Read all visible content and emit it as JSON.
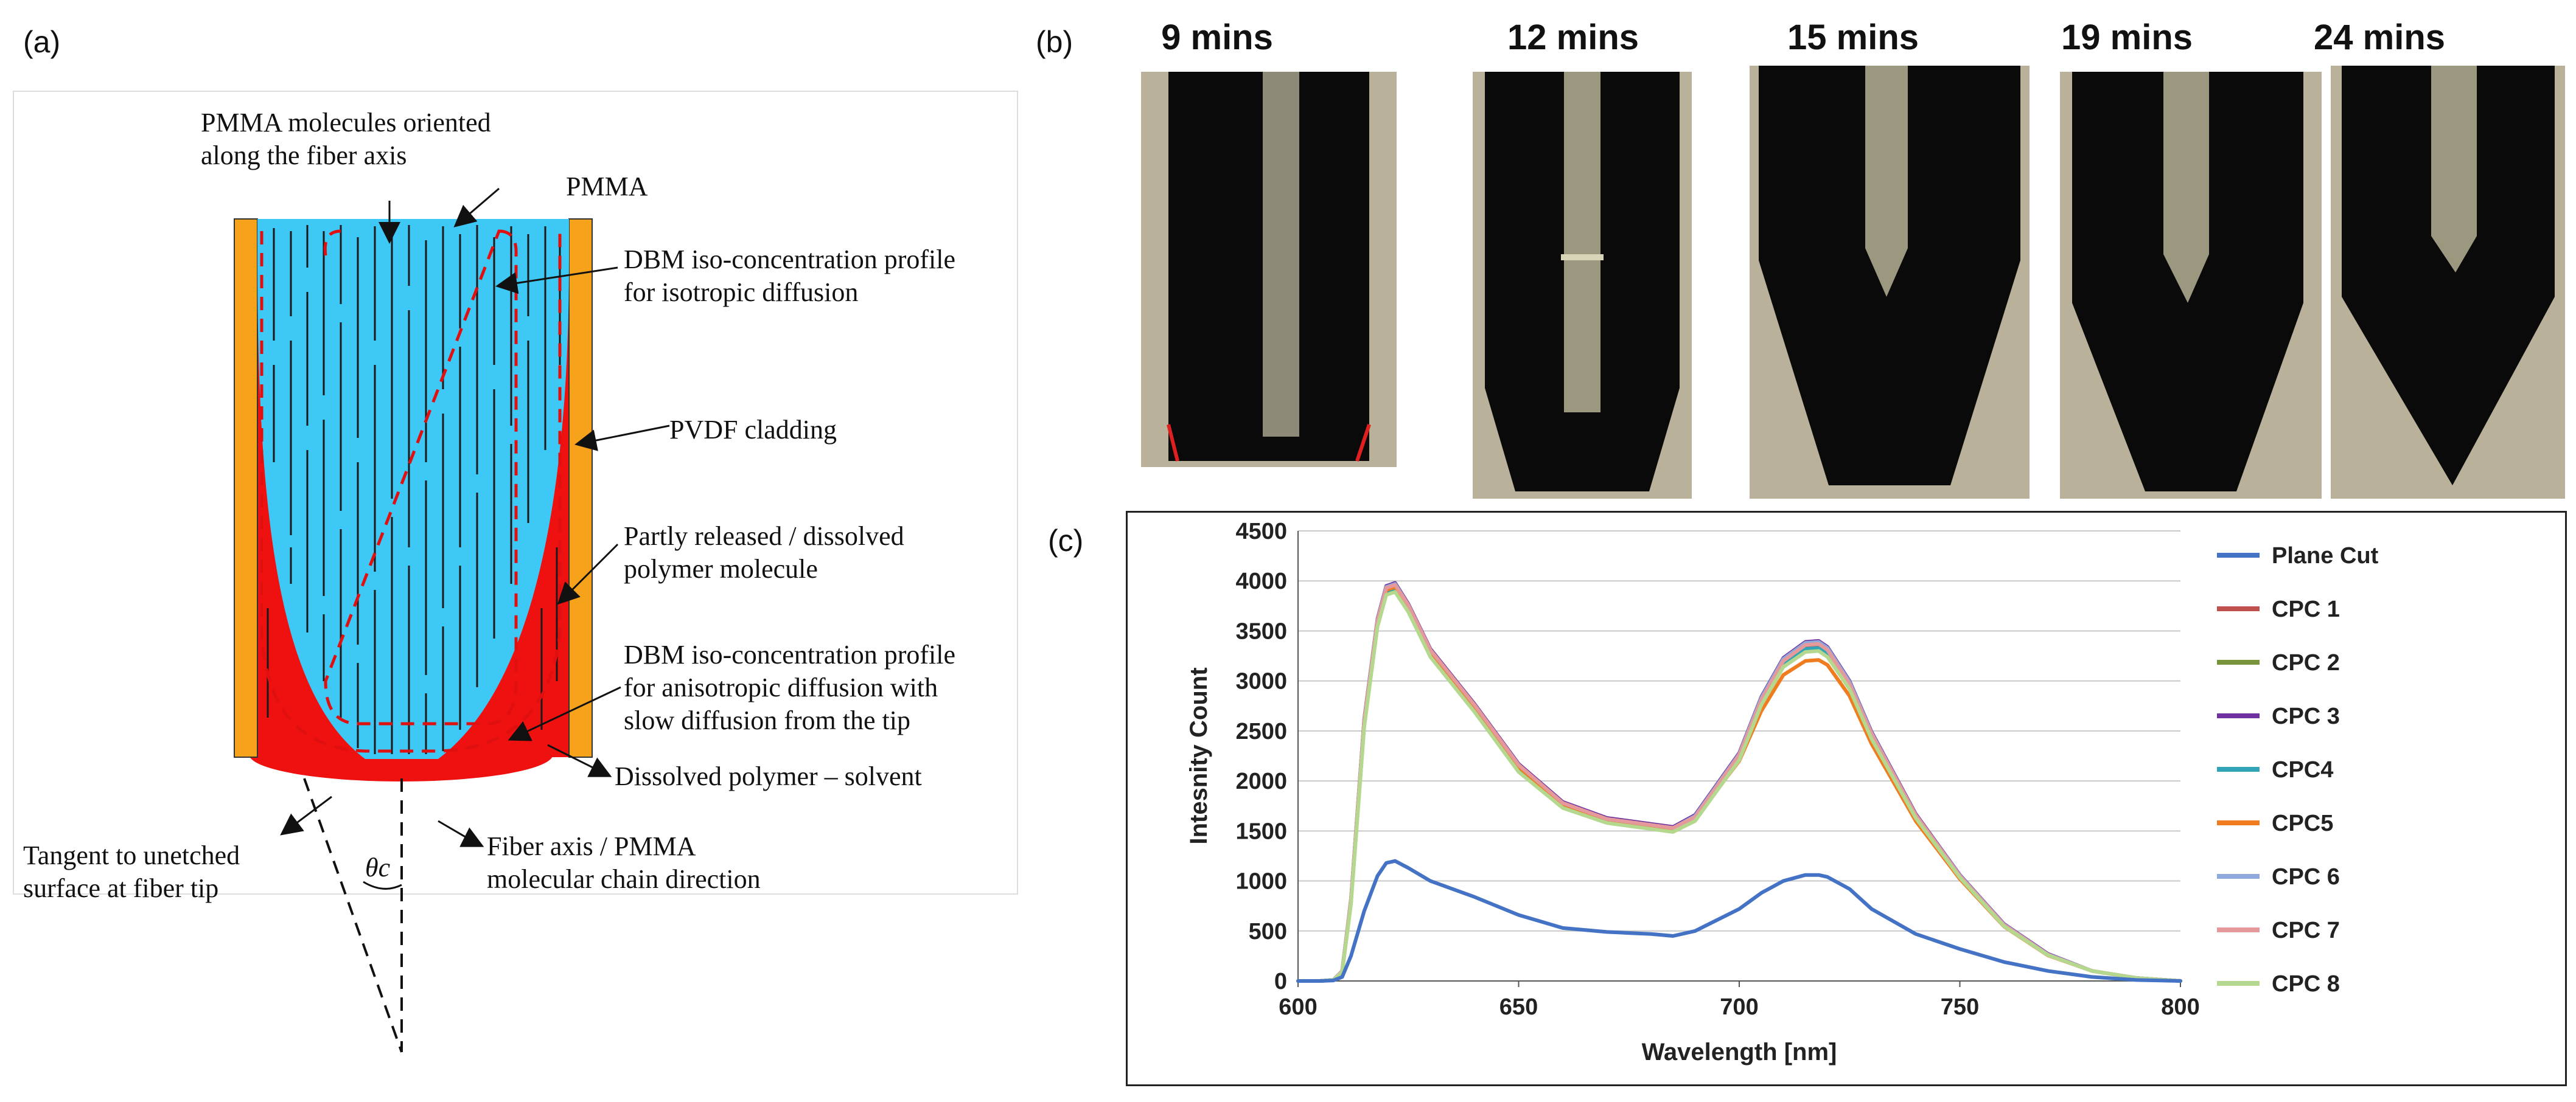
{
  "labels": {
    "a": "(a)",
    "b": "(b)",
    "c": "(c)"
  },
  "diagram": {
    "annotations": {
      "oriented1": "PMMA molecules oriented",
      "oriented2": "along the fiber axis",
      "pmma": "PMMA",
      "dbm_iso1": "DBM iso-concentration profile",
      "dbm_iso2": "for isotropic diffusion",
      "pvdf": "PVDF cladding",
      "partly1": "Partly released / dissolved",
      "partly2": "polymer molecule",
      "dbm_aniso1": "DBM iso-concentration profile",
      "dbm_aniso2": "for anisotropic diffusion with",
      "dbm_aniso3": "slow diffusion from the tip",
      "dissolved": "Dissolved polymer – solvent",
      "tangent1": "Tangent to unetched",
      "tangent2": "surface at fiber tip",
      "axis1": "Fiber axis / PMMA",
      "axis2": "molecular chain direction",
      "theta": "θc"
    },
    "colors": {
      "core": "#3ec8f5",
      "cladding": "#f7a21b",
      "solvent": "#ef1010",
      "profile": "#e01010"
    }
  },
  "photos": [
    {
      "title": "9 mins"
    },
    {
      "title": "12 mins"
    },
    {
      "title": "15 mins"
    },
    {
      "title": "19 mins"
    },
    {
      "title": "24 mins"
    }
  ],
  "chart_data": {
    "type": "line",
    "xlabel": "Wavelength [nm]",
    "ylabel": "Intesnity Count",
    "xlim": [
      600,
      800
    ],
    "ylim": [
      0,
      4500
    ],
    "xticks": [
      600,
      650,
      700,
      750,
      800
    ],
    "yticks": [
      0,
      500,
      1000,
      1500,
      2000,
      2500,
      3000,
      3500,
      4000,
      4500
    ],
    "grid": "horizontal",
    "legend_position": "right",
    "x": [
      600,
      605,
      608,
      610,
      612,
      615,
      618,
      620,
      622,
      625,
      630,
      640,
      650,
      660,
      670,
      675,
      680,
      685,
      690,
      700,
      705,
      710,
      715,
      718,
      720,
      725,
      730,
      740,
      750,
      760,
      770,
      780,
      790,
      800
    ],
    "series": [
      {
        "name": "Plane Cut",
        "color": "#4472c4",
        "values": [
          0,
          0,
          5,
          40,
          250,
          700,
          1050,
          1180,
          1200,
          1130,
          1000,
          840,
          660,
          530,
          490,
          480,
          470,
          450,
          500,
          720,
          880,
          1000,
          1060,
          1060,
          1040,
          920,
          720,
          470,
          320,
          190,
          100,
          40,
          10,
          0
        ]
      },
      {
        "name": "CPC 1",
        "color": "#c0504d",
        "values": [
          0,
          0,
          10,
          100,
          800,
          2600,
          3600,
          3920,
          3950,
          3750,
          3300,
          2750,
          2150,
          1780,
          1620,
          1590,
          1560,
          1530,
          1640,
          2250,
          2800,
          3180,
          3330,
          3340,
          3280,
          2950,
          2450,
          1650,
          1050,
          560,
          260,
          100,
          30,
          0
        ]
      },
      {
        "name": "CPC 2",
        "color": "#77933c",
        "values": [
          0,
          0,
          10,
          90,
          780,
          2550,
          3550,
          3870,
          3900,
          3700,
          3250,
          2700,
          2100,
          1740,
          1590,
          1560,
          1530,
          1500,
          1610,
          2220,
          2770,
          3150,
          3300,
          3310,
          3250,
          2930,
          2430,
          1640,
          1040,
          550,
          260,
          100,
          30,
          0
        ]
      },
      {
        "name": "CPC 3",
        "color": "#7030a0",
        "values": [
          0,
          0,
          10,
          100,
          820,
          2620,
          3620,
          3950,
          3980,
          3770,
          3320,
          2770,
          2170,
          1790,
          1630,
          1600,
          1570,
          1540,
          1660,
          2280,
          2840,
          3230,
          3390,
          3400,
          3340,
          3000,
          2490,
          1670,
          1060,
          570,
          270,
          100,
          30,
          0
        ]
      },
      {
        "name": "CPC4",
        "color": "#31a5b5",
        "values": [
          0,
          0,
          10,
          95,
          800,
          2580,
          3580,
          3900,
          3930,
          3730,
          3280,
          2730,
          2130,
          1760,
          1600,
          1570,
          1540,
          1510,
          1620,
          2240,
          2790,
          3170,
          3320,
          3330,
          3270,
          2940,
          2440,
          1640,
          1040,
          555,
          260,
          100,
          30,
          0
        ]
      },
      {
        "name": "CPC5",
        "color": "#f07c20",
        "values": [
          0,
          0,
          10,
          95,
          800,
          2590,
          3590,
          3910,
          3940,
          3740,
          3290,
          2740,
          2140,
          1770,
          1610,
          1580,
          1550,
          1520,
          1620,
          2200,
          2700,
          3060,
          3200,
          3210,
          3160,
          2850,
          2370,
          1600,
          1020,
          545,
          255,
          100,
          30,
          0
        ]
      },
      {
        "name": "CPC 6",
        "color": "#8ea9db",
        "values": [
          0,
          0,
          10,
          100,
          810,
          2610,
          3610,
          3940,
          3970,
          3760,
          3310,
          2760,
          2160,
          1780,
          1620,
          1590,
          1560,
          1530,
          1650,
          2270,
          2830,
          3220,
          3380,
          3390,
          3330,
          2990,
          2480,
          1660,
          1055,
          565,
          265,
          100,
          30,
          0
        ]
      },
      {
        "name": "CPC 7",
        "color": "#e6999a",
        "values": [
          0,
          0,
          10,
          100,
          810,
          2600,
          3600,
          3930,
          3960,
          3760,
          3310,
          2760,
          2160,
          1780,
          1620,
          1590,
          1560,
          1530,
          1640,
          2260,
          2810,
          3200,
          3360,
          3370,
          3310,
          2970,
          2470,
          1660,
          1050,
          560,
          262,
          100,
          30,
          0
        ]
      },
      {
        "name": "CPC 8",
        "color": "#b5d88f",
        "values": [
          0,
          0,
          10,
          90,
          770,
          2540,
          3540,
          3860,
          3890,
          3690,
          3240,
          2690,
          2090,
          1730,
          1580,
          1550,
          1520,
          1490,
          1600,
          2210,
          2760,
          3140,
          3290,
          3300,
          3240,
          2920,
          2420,
          1630,
          1035,
          548,
          258,
          100,
          30,
          0
        ]
      }
    ]
  }
}
